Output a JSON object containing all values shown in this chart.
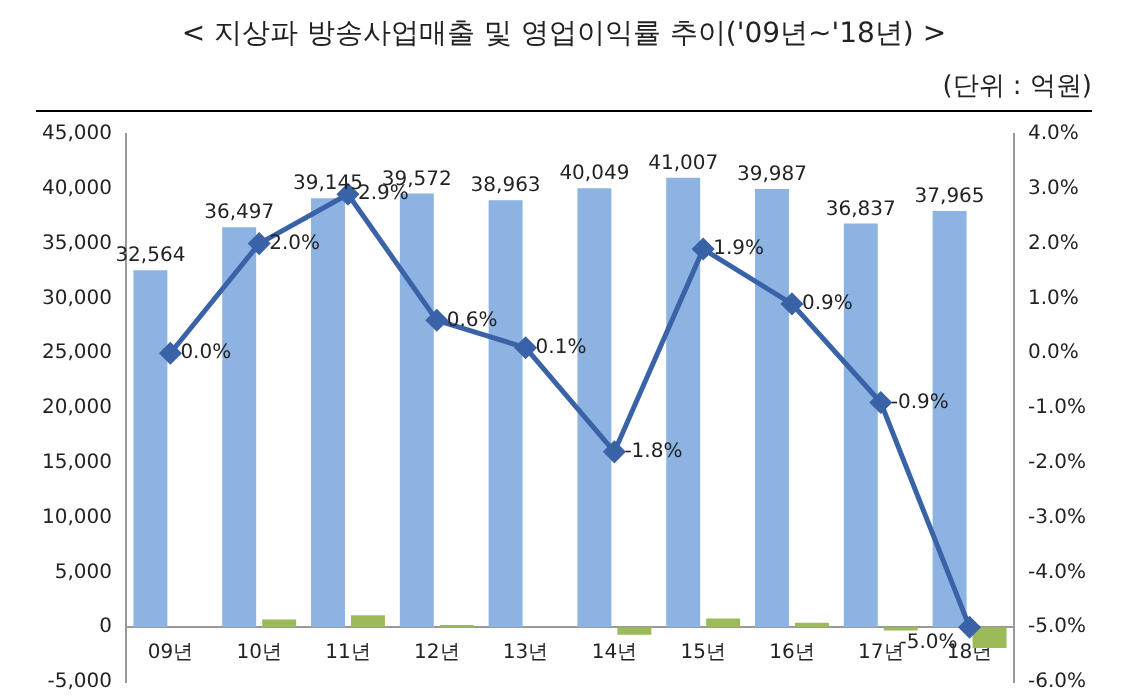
{
  "chart_data": {
    "type": "bar",
    "title": "< 지상파 방송사업매출 및 영업이익률 추이('09년~'18년) >",
    "subtitle": "(단위 : 억원)",
    "categories": [
      "09년",
      "10년",
      "11년",
      "12년",
      "13년",
      "14년",
      "15년",
      "16년",
      "17년",
      "18년"
    ],
    "series": [
      {
        "color": "#8db3e2",
        "values": [
          32564,
          36497,
          39145,
          39572,
          38963,
          40049,
          41007,
          39987,
          36837,
          37965
        ],
        "value_labels": [
          "32,564",
          "36,497",
          "39,145",
          "39,572",
          "38,963",
          "40,049",
          "41,007",
          "39,987",
          "36,837",
          "37,965"
        ]
      },
      {
        "color": "#9bbb59",
        "values": [
          0,
          700,
          1100,
          200,
          0,
          -700,
          800,
          400,
          -300,
          -1900
        ]
      },
      {
        "type": "line",
        "axis": "y2",
        "color": "#3a62a7",
        "marker": "diamond",
        "values": [
          0.0,
          2.0,
          2.9,
          0.6,
          0.1,
          -1.8,
          1.9,
          0.9,
          -0.9,
          -5.0
        ],
        "value_labels": [
          "0.0%",
          "2.0%",
          "2.9%",
          "0.6%",
          "0.1%",
          "-1.8%",
          "1.9%",
          "0.9%",
          "-0.9%",
          "-5.0%"
        ]
      }
    ],
    "ylim": [
      -5000,
      45000
    ],
    "yticks": [
      {
        "value": -5000,
        "label": "-5,000"
      },
      {
        "value": 0,
        "label": "0"
      },
      {
        "value": 5000,
        "label": "5,000"
      },
      {
        "value": 10000,
        "label": "10,000"
      },
      {
        "value": 15000,
        "label": "15,000"
      },
      {
        "value": 20000,
        "label": "20,000"
      },
      {
        "value": 25000,
        "label": "25,000"
      },
      {
        "value": 30000,
        "label": "30,000"
      },
      {
        "value": 35000,
        "label": "35,000"
      },
      {
        "value": 40000,
        "label": "40,000"
      },
      {
        "value": 45000,
        "label": "45,000"
      }
    ],
    "y2lim": [
      -6,
      4
    ],
    "y2ticks": [
      {
        "value": -6,
        "label": "-6.0%"
      },
      {
        "value": -5,
        "label": "-5.0%"
      },
      {
        "value": -4,
        "label": "-4.0%"
      },
      {
        "value": -3,
        "label": "-3.0%"
      },
      {
        "value": -2,
        "label": "-2.0%"
      },
      {
        "value": -1,
        "label": "-1.0%"
      },
      {
        "value": 0,
        "label": "0.0%"
      },
      {
        "value": 1,
        "label": "1.0%"
      },
      {
        "value": 2,
        "label": "2.0%"
      },
      {
        "value": 3,
        "label": "3.0%"
      },
      {
        "value": 4,
        "label": "4.0%"
      }
    ],
    "grid": false,
    "legend": false
  }
}
